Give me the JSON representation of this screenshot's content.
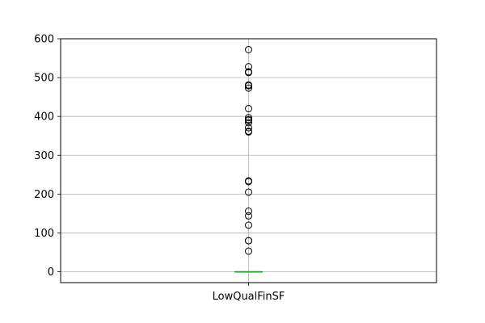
{
  "chart_data": {
    "type": "box",
    "categories": [
      "LowQualFinSF"
    ],
    "ylim": [
      -28,
      600
    ],
    "yticks": [
      0,
      100,
      200,
      300,
      400,
      500,
      600
    ],
    "grid": true,
    "series": [
      {
        "box": {
          "min": 0,
          "q1": 0,
          "median": 0,
          "q3": 0,
          "max": 0
        },
        "outliers": [
          53,
          80,
          80,
          120,
          144,
          156,
          205,
          232,
          234,
          360,
          362,
          371,
          384,
          390,
          392,
          397,
          420,
          473,
          479,
          481,
          513,
          514,
          515,
          528,
          572
        ]
      }
    ],
    "colors": {
      "box": "#1f77b4",
      "median": "#2ca02c",
      "whisker": "#000000",
      "grid": "#b0b0b0",
      "outlier": "#000000"
    }
  }
}
